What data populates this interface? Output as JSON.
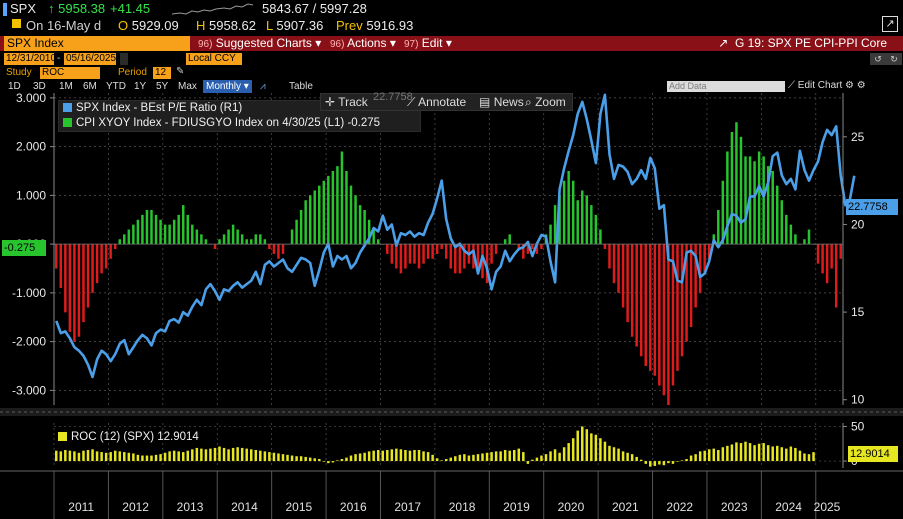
{
  "quote": {
    "ticker": "SPX",
    "arrow": "↑",
    "last": "5958.38",
    "change": "+41.45",
    "range": "5843.67 / 5997.28",
    "on_date": "On 16-May d",
    "open_label": "O",
    "open": "5929.09",
    "high_label": "H",
    "high": "5958.62",
    "low_label": "L",
    "low": "5907.36",
    "prev_label": "Prev",
    "prev": "5916.93",
    "colors": {
      "up": "#33e24a",
      "accent": "#f2c200"
    }
  },
  "toolbar": {
    "security": "SPX Index",
    "buttons": [
      {
        "num": "96)",
        "label": "Suggested Charts",
        "caret": "▾"
      },
      {
        "num": "96)",
        "label": "Actions",
        "caret": "▾"
      },
      {
        "num": "97)",
        "label": "Edit",
        "caret": "▾"
      }
    ],
    "chart_title": "G 19: SPX PE CPI-PPI Core"
  },
  "dates": {
    "start": "12/31/2010",
    "end": "05/16/2025",
    "currency": "Local CCY"
  },
  "study": {
    "label": "Study",
    "value": "ROC",
    "period_label": "Period",
    "period": "12"
  },
  "ranges": [
    "1D",
    "3D",
    "1M",
    "6M",
    "YTD",
    "1Y",
    "5Y",
    "Max"
  ],
  "frequency": "Monthly",
  "table_label": "Table",
  "overlay": {
    "track": "Track",
    "annotate": "Annotate",
    "news": "News",
    "zoom": "Zoom",
    "ghost": "22.7758"
  },
  "add_data_placeholder": "Add Data",
  "edit_chart": "Edit Chart",
  "legend": {
    "spx": "SPX Index - BEst P/E Ratio (R1)",
    "cpi": "CPI XYOY Index - FDIUSGYO Index on 4/30/25 (L1) -0.275",
    "roc": "ROC (12) (SPX) 12.9014"
  },
  "tags": {
    "pe_last": "22.7758",
    "cpi_last": "-0.275",
    "roc_last": "12.9014"
  },
  "chart_data": [
    {
      "type": "bar",
      "title": "",
      "series_name": "CPI XYOY Index - FDIUSGYO Index",
      "axis": "left",
      "ylim": [
        -3.3,
        3.1
      ],
      "y_ticks": [
        "3.000",
        "2.000",
        "1.000",
        "0.000",
        "-1.000",
        "-2.000",
        "-3.000"
      ],
      "x_ticks": [
        "2011",
        "2012",
        "2013",
        "2014",
        "2015",
        "2016",
        "2017",
        "2018",
        "2019",
        "2020",
        "2021",
        "2022",
        "2023",
        "2024",
        "2025"
      ],
      "start_date": "2011-01",
      "frequency": "monthly",
      "values": [
        -0.5,
        -0.9,
        -1.4,
        -1.8,
        -2.0,
        -1.9,
        -1.6,
        -1.3,
        -1.0,
        -0.8,
        -0.6,
        -0.5,
        -0.3,
        -0.1,
        0.1,
        0.2,
        0.3,
        0.4,
        0.5,
        0.6,
        0.7,
        0.7,
        0.6,
        0.5,
        0.4,
        0.4,
        0.5,
        0.6,
        0.8,
        0.6,
        0.4,
        0.3,
        0.2,
        0.1,
        0.0,
        -0.1,
        0.1,
        0.2,
        0.3,
        0.4,
        0.3,
        0.2,
        0.1,
        0.1,
        0.2,
        0.2,
        0.1,
        -0.1,
        -0.2,
        -0.3,
        -0.2,
        0.0,
        0.3,
        0.5,
        0.7,
        0.9,
        1.0,
        1.1,
        1.2,
        1.3,
        1.4,
        1.5,
        1.6,
        1.9,
        1.5,
        1.2,
        1.0,
        0.8,
        0.7,
        0.5,
        0.3,
        0.1,
        0.0,
        -0.2,
        -0.4,
        -0.5,
        -0.6,
        -0.5,
        -0.4,
        -0.4,
        -0.5,
        -0.4,
        -0.3,
        -0.3,
        -0.2,
        -0.1,
        -0.3,
        -0.5,
        -0.6,
        -0.6,
        -0.5,
        -0.4,
        -0.5,
        -0.6,
        -0.7,
        -0.8,
        -0.4,
        -0.2,
        0.0,
        0.1,
        0.2,
        0.0,
        -0.1,
        -0.3,
        -0.2,
        -0.1,
        -0.2,
        -0.1,
        0.2,
        0.4,
        0.8,
        1.0,
        1.3,
        1.5,
        1.3,
        0.9,
        1.1,
        1.0,
        0.8,
        0.6,
        0.3,
        -0.1,
        -0.5,
        -0.8,
        -1.0,
        -1.3,
        -1.6,
        -1.9,
        -2.1,
        -2.3,
        -2.5,
        -2.6,
        -2.7,
        -2.9,
        -3.1,
        -3.3,
        -2.9,
        -2.6,
        -2.3,
        -2.0,
        -1.7,
        -1.3,
        -1.0,
        -0.6,
        -0.3,
        0.2,
        0.7,
        1.3,
        1.9,
        2.3,
        2.5,
        2.2,
        1.8,
        1.8,
        1.7,
        1.9,
        1.8,
        1.6,
        1.5,
        1.2,
        0.9,
        0.6,
        0.4,
        0.2,
        0.0,
        0.1,
        0.3,
        0.0,
        -0.4,
        -0.6,
        -0.8,
        -0.5,
        -1.3,
        -0.3
      ]
    },
    {
      "type": "line",
      "series_name": "SPX Index - BEst P/E Ratio",
      "axis": "right",
      "ylim": [
        9.7,
        27.5
      ],
      "y_ticks": [
        "25",
        "20",
        "15",
        "10"
      ],
      "last_value": 22.7758,
      "start_date": "2011-01",
      "frequency": "monthly",
      "values": [
        14.5,
        13.8,
        13.9,
        13.5,
        13.0,
        12.8,
        12.5,
        12.0,
        11.3,
        12.3,
        12.8,
        12.6,
        12.2,
        12.6,
        13.2,
        13.4,
        12.6,
        13.0,
        13.4,
        13.7,
        13.5,
        13.1,
        13.8,
        14.0,
        13.9,
        14.5,
        14.6,
        14.4,
        15.0,
        14.8,
        15.3,
        15.7,
        15.4,
        16.3,
        16.6,
        16.2,
        15.7,
        16.3,
        16.2,
        16.5,
        16.7,
        16.4,
        16.6,
        16.8,
        17.3,
        16.6,
        17.7,
        17.9,
        17.6,
        17.8,
        18.0,
        17.5,
        17.3,
        17.7,
        18.1,
        18.0,
        17.8,
        16.5,
        17.4,
        18.4,
        18.9,
        17.6,
        18.2,
        18.0,
        18.2,
        17.5,
        17.8,
        18.4,
        18.8,
        19.2,
        19.8,
        19.6,
        20.5,
        19.7,
        20.0,
        18.8,
        19.5,
        19.4,
        19.6,
        19.3,
        19.5,
        19.4,
        20.1,
        20.6,
        21.5,
        22.5,
        20.3,
        19.2,
        18.7,
        18.9,
        18.5,
        18.3,
        18.5,
        17.2,
        18.2,
        17.5,
        16.3,
        17.3,
        17.6,
        18.5,
        17.9,
        18.3,
        18.6,
        18.7,
        19.0,
        18.2,
        18.9,
        19.4,
        19.3,
        17.9,
        16.7,
        22.0,
        23.2,
        24.2,
        25.1,
        26.3,
        27.0,
        26.0,
        24.8,
        23.5,
        26.3,
        27.4,
        24.0,
        22.6,
        23.4,
        23.3,
        23.0,
        22.3,
        22.6,
        23.1,
        22.6,
        23.8,
        23.2,
        20.9,
        21.1,
        18.0,
        17.9,
        16.8,
        16.7,
        18.4,
        18.5,
        18.2,
        17.0,
        17.2,
        17.9,
        19.1,
        18.7,
        19.1,
        19.9,
        20.6,
        20.5,
        20.1,
        20.3,
        21.6,
        21.6,
        22.2,
        21.6,
        22.4,
        23.9,
        24.1,
        22.8,
        22.3,
        22.6,
        22.0,
        24.2,
        23.1,
        22.5,
        23.1,
        23.6,
        24.7,
        25.4,
        25.1,
        25.6,
        22.8,
        21.1,
        21.4,
        22.7758
      ]
    },
    {
      "type": "bar",
      "series_name": "ROC (12) (SPX)",
      "ylim": [
        -10,
        55
      ],
      "y_ticks": [
        "50",
        "0"
      ],
      "last_value": 12.9014,
      "start_date": "2011-01",
      "frequency": "monthly",
      "values": [
        15,
        14,
        16,
        15,
        14,
        12,
        15,
        16,
        17,
        14,
        13,
        12,
        13,
        15,
        14,
        13,
        12,
        11,
        9,
        8,
        8,
        8,
        9,
        10,
        12,
        14,
        15,
        14,
        13,
        15,
        17,
        19,
        18,
        17,
        18,
        19,
        21,
        19,
        17,
        19,
        20,
        19,
        18,
        17,
        16,
        15,
        14,
        13,
        12,
        11,
        10,
        9,
        8,
        7,
        7,
        6,
        5,
        4,
        3,
        -1,
        -3,
        -2,
        1,
        3,
        5,
        8,
        10,
        11,
        12,
        14,
        15,
        16,
        15,
        16,
        17,
        18,
        17,
        16,
        15,
        16,
        16,
        14,
        13,
        9,
        4,
        1,
        3,
        5,
        7,
        9,
        10,
        8,
        9,
        10,
        11,
        12,
        13,
        14,
        14,
        16,
        15,
        16,
        18,
        13,
        -4,
        2,
        5,
        8,
        10,
        14,
        17,
        12,
        20,
        26,
        33,
        44,
        50,
        46,
        40,
        38,
        33,
        28,
        22,
        20,
        18,
        14,
        12,
        10,
        6,
        2,
        -4,
        -8,
        -7,
        -5,
        -6,
        -3,
        -4,
        -1,
        1,
        3,
        8,
        10,
        14,
        15,
        17,
        18,
        16,
        20,
        22,
        24,
        27,
        26,
        28,
        26,
        23,
        25,
        26,
        23,
        21,
        22,
        20,
        18,
        21,
        19,
        15,
        11,
        10,
        12.9014
      ]
    }
  ],
  "colors": {
    "pe_line": "#4a9fe8",
    "cpi_pos": "#27c42e",
    "cpi_neg": "#e01b1b",
    "roc": "#e6e621",
    "panel_bg": "#000000",
    "grid": "#555555",
    "toolbar": "#8a1018",
    "amber": "#f7a11a"
  }
}
